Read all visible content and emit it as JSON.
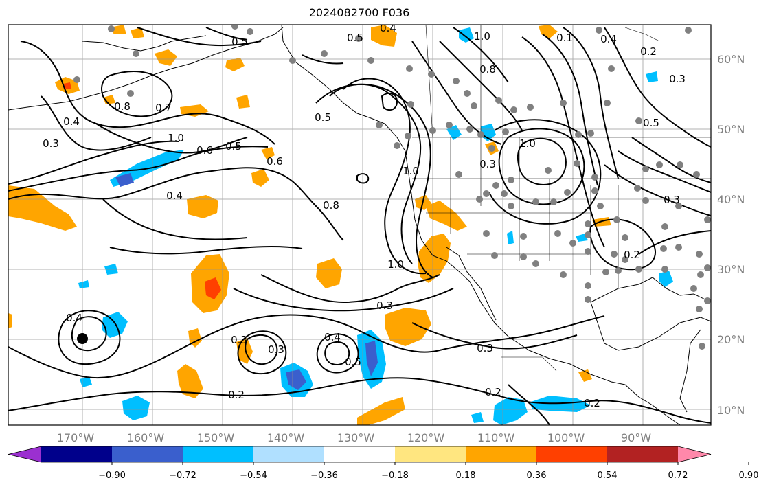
{
  "title": "2024082700 F036",
  "latitude_labels": [
    "60°N",
    "50°N",
    "40°N",
    "30°N",
    "20°N",
    "10°N"
  ],
  "longitude_labels": [
    "170°W",
    "160°W",
    "150°W",
    "140°W",
    "130°W",
    "120°W",
    "110°W",
    "100°W",
    "90°W"
  ],
  "colorbar": {
    "ticks": [
      "−0.90",
      "−0.72",
      "−0.54",
      "−0.36",
      "−0.18",
      "0.18",
      "0.36",
      "0.54",
      "0.72",
      "0.90"
    ],
    "colors": [
      "#9b30d0",
      "#00008b",
      "#3a5fcd",
      "#00bfff",
      "#b0e0ff",
      "#ffffff",
      "#ffe680",
      "#ffa500",
      "#ff4000",
      "#b22222",
      "#ff88aa"
    ]
  },
  "contour_labels": [
    "0.5",
    "0.4",
    "0.5",
    "1.0",
    "0.1",
    "0.4",
    "0.2",
    "0.3",
    "0.8",
    "0.7",
    "0.4",
    "0.3",
    "1.0",
    "0.6",
    "0.5",
    "0.6",
    "0.5",
    "0.8",
    "1.0",
    "0.3",
    "1.0",
    "0.5",
    "0.4",
    "0.8",
    "0.3",
    "1.0",
    "0.3",
    "0.2",
    "0.4",
    "0.3",
    "0.4",
    "0.5",
    "0.3",
    "0.2",
    "0.3",
    "0.2",
    "0.2"
  ]
}
